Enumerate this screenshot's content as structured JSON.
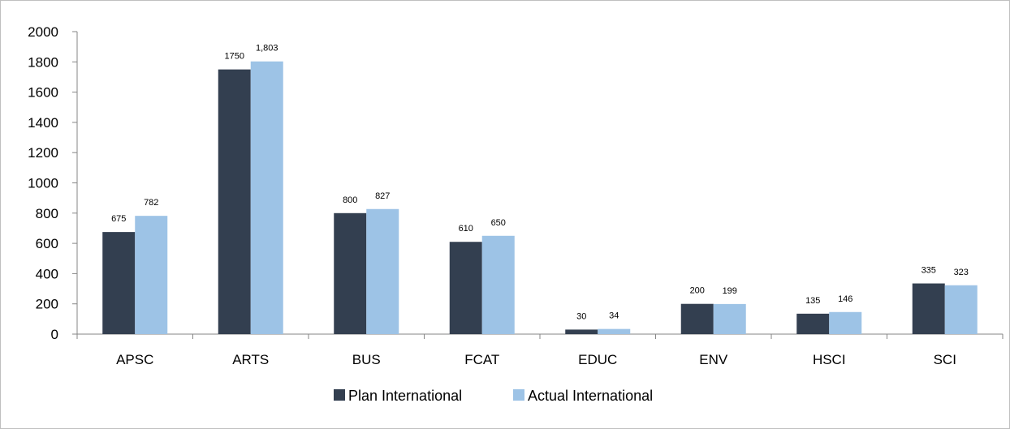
{
  "chart_data": {
    "type": "bar",
    "categories": [
      "APSC",
      "ARTS",
      "BUS",
      "FCAT",
      "EDUC",
      "ENV",
      "HSCI",
      "SCI"
    ],
    "series": [
      {
        "name": "Plan International",
        "color": "#333f50",
        "values": [
          675,
          1750,
          800,
          610,
          30,
          200,
          135,
          335
        ],
        "labels": [
          "675",
          "1750",
          "800",
          "610",
          "30",
          "200",
          "135",
          "335"
        ]
      },
      {
        "name": "Actual International",
        "color": "#9dc3e6",
        "values": [
          782,
          1803,
          827,
          650,
          34,
          199,
          146,
          323
        ],
        "labels": [
          "782",
          "1,803",
          "827",
          "650",
          "34",
          "199",
          "146",
          "323"
        ]
      }
    ],
    "ylim": [
      0,
      2000
    ],
    "yticks": [
      "0",
      "200",
      "400",
      "600",
      "800",
      "1000",
      "1200",
      "1400",
      "1600",
      "1800",
      "2000"
    ],
    "title": "",
    "xlabel": "",
    "ylabel": "",
    "grid": false,
    "legend_position": "bottom"
  }
}
